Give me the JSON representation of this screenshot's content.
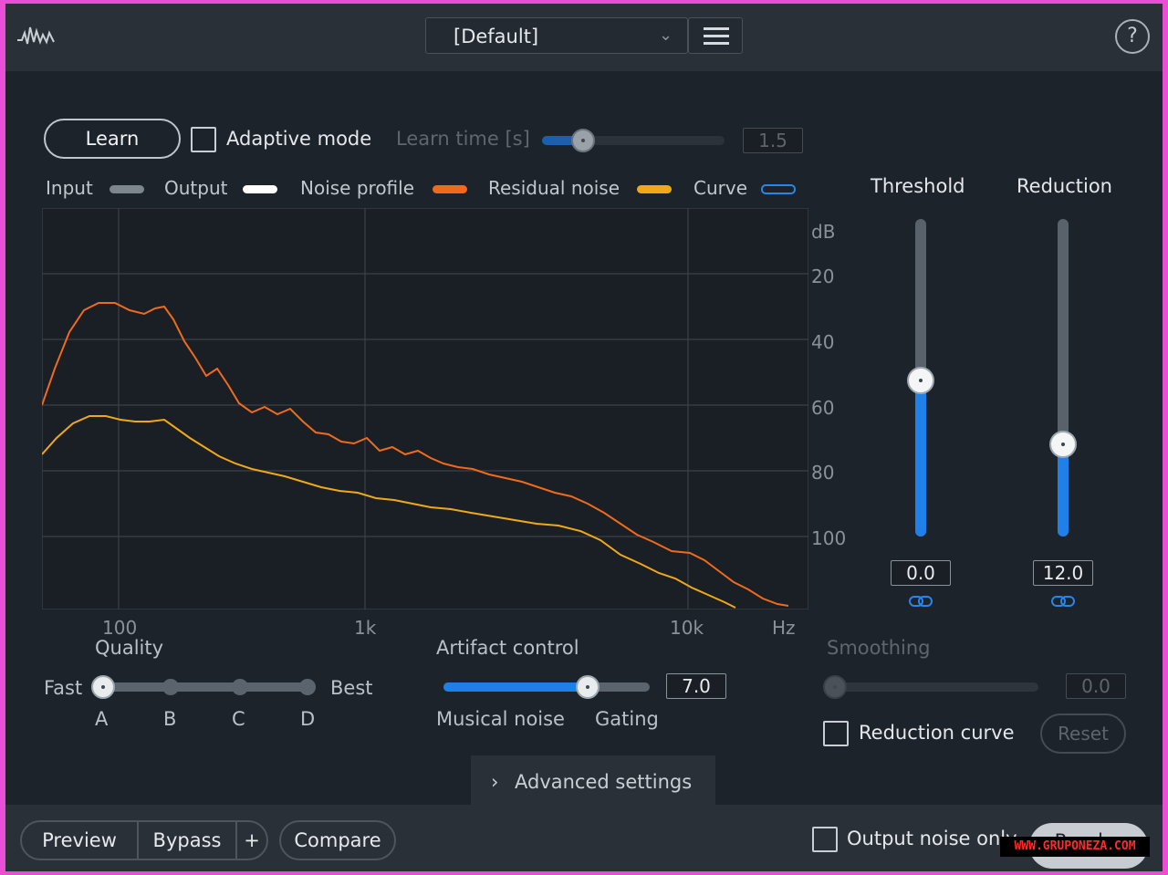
{
  "topbar": {
    "logo": "waveform-logo-icon",
    "preset": "[Default]",
    "preset_chevron": "⌄",
    "menu_icon": "hamburger-icon",
    "help": "?"
  },
  "learn": {
    "button": "Learn",
    "adaptive_mode": "Adaptive mode",
    "adaptive_checked": false,
    "learn_time_label": "Learn time [s]",
    "learn_time_value": "1.5"
  },
  "legend": {
    "input": "Input",
    "output": "Output",
    "noise_profile": "Noise profile",
    "residual_noise": "Residual noise",
    "curve": "Curve",
    "colors": {
      "input": "#7d858d",
      "output": "#ffffff",
      "noise_profile": "#f06a1c",
      "residual_noise": "#f0a81a",
      "curve": "#2a86e6"
    }
  },
  "graph": {
    "db_unit": "dB",
    "db_ticks": [
      "20",
      "40",
      "60",
      "80",
      "100"
    ],
    "freq_ticks": [
      "100",
      "1k",
      "10k"
    ],
    "freq_unit": "Hz"
  },
  "threshold": {
    "label": "Threshold",
    "value": "0.0",
    "level": 0.49
  },
  "reduction": {
    "label": "Reduction",
    "value": "12.0",
    "level": 0.29
  },
  "quality": {
    "label": "Quality",
    "fast": "Fast",
    "best": "Best",
    "options": [
      "A",
      "B",
      "C",
      "D"
    ],
    "selected": "A"
  },
  "artifact": {
    "label": "Artifact control",
    "value": "7.0",
    "level": 0.7,
    "left": "Musical noise",
    "right": "Gating"
  },
  "smoothing": {
    "label": "Smoothing",
    "value": "0.0"
  },
  "reduction_curve": {
    "label": "Reduction curve",
    "checked": false,
    "reset": "Reset"
  },
  "advanced": {
    "chevron": "›",
    "label": "Advanced settings"
  },
  "bottombar": {
    "preview": "Preview",
    "bypass": "Bypass",
    "plus": "+",
    "compare": "Compare",
    "output_noise_only": "Output noise only",
    "render": "Render"
  },
  "watermark": "WWW.GRUPONEZA.COM"
}
